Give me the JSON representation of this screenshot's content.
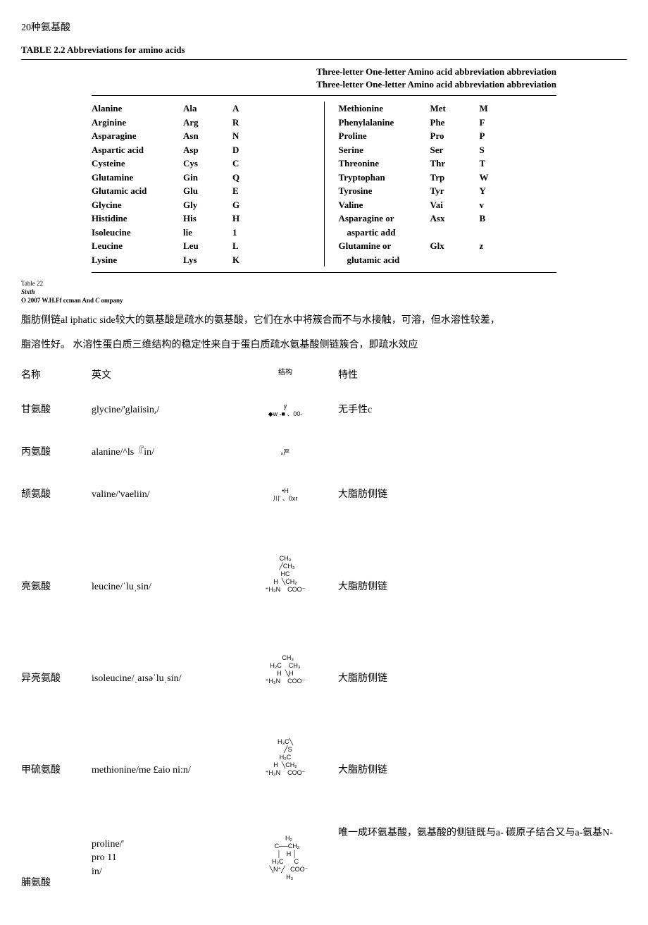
{
  "title": "20种氨基酸",
  "tableCaption": "TABLE 2.2 Abbreviations for amino acids",
  "abbrevHeader1": "Three-letter One-letter Amino acid abbreviation abbreviation",
  "abbrevHeader2": "Three-letter One-letter Amino acid abbreviation abbreviation",
  "leftCol": [
    {
      "aa": "Alanine",
      "three": "Ala",
      "one": "A"
    },
    {
      "aa": "Arginine",
      "three": "Arg",
      "one": "R"
    },
    {
      "aa": "Asparagine",
      "three": "Asn",
      "one": "N"
    },
    {
      "aa": "Aspartic acid",
      "three": "Asp",
      "one": "D"
    },
    {
      "aa": "Cysteine",
      "three": "Cys",
      "one": "C"
    },
    {
      "aa": "Glutamine",
      "three": "Gin",
      "one": "Q"
    },
    {
      "aa": "Glutamic acid",
      "three": "Glu",
      "one": "E"
    },
    {
      "aa": "Glycine",
      "three": "Gly",
      "one": "G"
    },
    {
      "aa": "Histidine",
      "three": "His",
      "one": "H"
    },
    {
      "aa": "Isoleucine",
      "three": "lie",
      "one": "1"
    },
    {
      "aa": "Leucine",
      "three": "Leu",
      "one": "L"
    },
    {
      "aa": "Lysine",
      "three": "Lys",
      "one": "K"
    }
  ],
  "rightCol": [
    {
      "aa": "Methionine",
      "three": "Met",
      "one": "M"
    },
    {
      "aa": "Phenylalanine",
      "three": "Phe",
      "one": "F"
    },
    {
      "aa": "Proline",
      "three": "Pro",
      "one": "P"
    },
    {
      "aa": "Serine",
      "three": "Ser",
      "one": "S"
    },
    {
      "aa": "Threonine",
      "three": "Thr",
      "one": "T"
    },
    {
      "aa": "Tryptophan",
      "three": "Trp",
      "one": "W"
    },
    {
      "aa": "Tyrosine",
      "three": "Tyr",
      "one": "Y"
    },
    {
      "aa": "Valine",
      "three": "Vai",
      "one": "v"
    },
    {
      "aa": "Asparagine or",
      "three": "Asx",
      "one": "B"
    },
    {
      "aa": "  aspartic add",
      "three": "",
      "one": ""
    },
    {
      "aa": "Glutamine or",
      "three": "Glx",
      "one": "z"
    },
    {
      "aa": "  glutamic acid",
      "three": "",
      "one": ""
    }
  ],
  "footnoteLine1": "Table 22",
  "footnoteLine2": "Sixth",
  "footnoteLine3": "O 2007 W.H.Ff ccman And C ompany",
  "para1": "脂肪侧链al iphatic side较大的氨基酸是疏水的氨基酸，它们在水中将簇合而不与水接触，可溶，但水溶性较差，",
  "para2": "脂溶性好。 水溶性蛋白质三维结构的稳定性来自于蛋白质疏水氨基酸侧链簇合，即疏水效应",
  "propHeader": {
    "name": "名称",
    "en": "英文",
    "struct": "结构",
    "prop": "特性"
  },
  "props": [
    {
      "name": "甘氨酸",
      "en": "glycine/'glaiisin,/",
      "struct": "y\n◆w -■ 、00-",
      "prop": "无手性c"
    },
    {
      "name": "丙氨酸",
      "en": "alanine/^ls『in/",
      "struct": "ₙ严",
      "prop": ""
    },
    {
      "name": "颉氨酸",
      "en": "valine/'vaeliin/",
      "struct": "•H\n川' 、0xr",
      "prop": "大脂肪侧链"
    },
    {
      "name": "亮氨酸",
      "en": "leucine/ˈluˌsin/",
      "struct": "CH₃\n  ╱CH₃\nHC\nH  ╲CH₂\n⁺H₃N    COO⁻",
      "prop": "大脂肪侧链",
      "tall": true
    },
    {
      "name": "异亮氨酸",
      "en": "isoleucine/ˌaɪsəˈluˌsin/",
      "struct": "   CH₃\nH₂C    CH₃\nH  ╲H\n⁺H₃N    COO⁻",
      "prop": "大脂肪侧链",
      "tall": true
    },
    {
      "name": "甲硫氨酸",
      "en": "methionine/me £aio ni:n/",
      "struct": "H₃C╲\n   ╱S\nH₂C\nH  ╲CH₂\n⁺H₃N    COO⁻",
      "prop": "大脂肪侧链",
      "tall": true
    }
  ],
  "prolineRow": {
    "name": "脯氨酸",
    "en": "proline/'\npro 11\nin/",
    "struct": "    H₂\n  C──CH₂\n  │   H │\nH₂C      C\n    ╲N⁺╱   COO⁻\n     H₂",
    "prop": "唯一成环氨基酸，氨基酸的侧链既与a- 碳原子结合又与a-氨基N-"
  }
}
